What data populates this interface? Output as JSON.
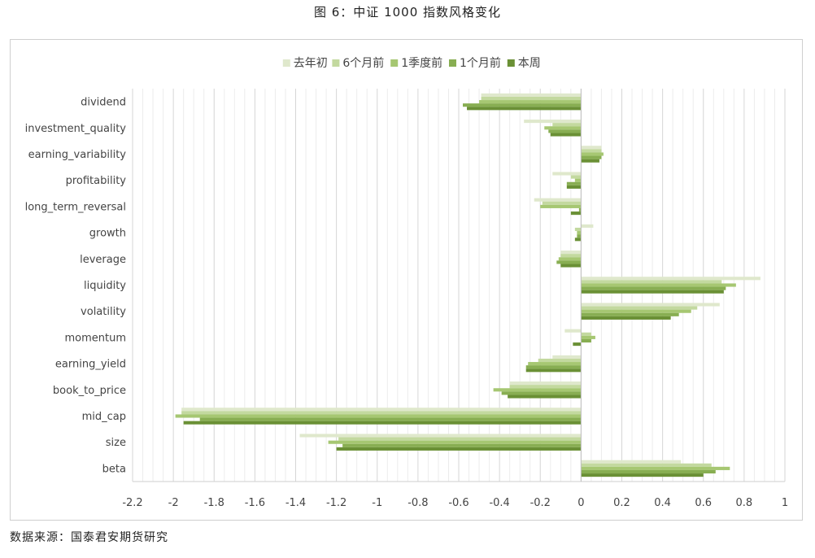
{
  "figure_title": "图 6：中证 1000 指数风格变化",
  "source_note": "数据来源：国泰君安期货研究",
  "chart_data": {
    "type": "bar",
    "orientation": "horizontal",
    "title": "",
    "xlabel": "",
    "ylabel": "",
    "xlim": [
      -2.2,
      1
    ],
    "xticks": [
      "-2.2",
      "-2",
      "-1.8",
      "-1.6",
      "-1.4",
      "-1.2",
      "-1",
      "-0.8",
      "-0.6",
      "-0.4",
      "-0.2",
      "0",
      "0.2",
      "0.4",
      "0.6",
      "0.8",
      "1"
    ],
    "grid": true,
    "legend_position": "top",
    "categories": [
      "dividend",
      "investment_quality",
      "earning_variability",
      "profitability",
      "long_term_reversal",
      "growth",
      "leverage",
      "liquidity",
      "volatility",
      "momentum",
      "earning_yield",
      "book_to_price",
      "mid_cap",
      "size",
      "beta"
    ],
    "series": [
      {
        "name": "去年初",
        "color": "#dfe8cc",
        "values": [
          -0.49,
          -0.28,
          0.1,
          -0.14,
          -0.23,
          0.06,
          -0.1,
          0.88,
          0.68,
          -0.08,
          -0.14,
          -0.35,
          -1.96,
          -1.38,
          0.49
        ]
      },
      {
        "name": "6个月前",
        "color": "#c3d99f",
        "values": [
          -0.49,
          -0.14,
          0.1,
          -0.05,
          -0.19,
          -0.03,
          -0.1,
          0.69,
          0.57,
          0.05,
          -0.21,
          -0.35,
          -1.96,
          -1.19,
          0.64
        ]
      },
      {
        "name": "1季度前",
        "color": "#a6c772",
        "values": [
          -0.5,
          -0.18,
          0.11,
          -0.03,
          -0.2,
          -0.02,
          -0.11,
          0.76,
          0.54,
          0.07,
          -0.26,
          -0.43,
          -1.99,
          -1.24,
          0.73
        ]
      },
      {
        "name": "1个月前",
        "color": "#88ae52",
        "values": [
          -0.58,
          -0.16,
          0.1,
          -0.07,
          -0.01,
          -0.02,
          -0.12,
          0.71,
          0.48,
          0.05,
          -0.27,
          -0.39,
          -1.87,
          -1.17,
          0.66
        ]
      },
      {
        "name": "本周",
        "color": "#6a9035",
        "values": [
          -0.56,
          -0.15,
          0.09,
          -0.07,
          -0.05,
          -0.03,
          -0.1,
          0.7,
          0.44,
          -0.04,
          -0.27,
          -0.36,
          -1.95,
          -1.2,
          0.6
        ]
      }
    ]
  }
}
